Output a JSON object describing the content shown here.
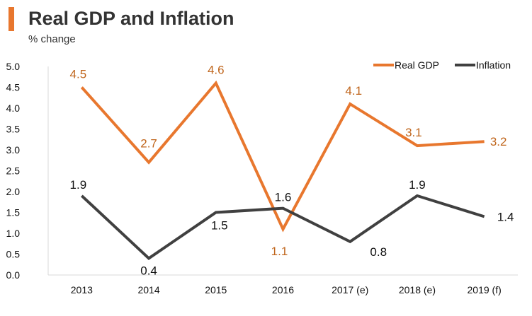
{
  "header": {
    "title": "Real GDP and Inflation",
    "subtitle": "% change"
  },
  "colors": {
    "accent": "#e8772e",
    "real_gdp": "#e8772e",
    "inflation": "#404040",
    "gdp_label": "#c0661d",
    "axis": "#d9d9d9"
  },
  "chart_data": {
    "type": "line",
    "title": "Real GDP and Inflation",
    "subtitle": "% change",
    "categories": [
      "2013",
      "2014",
      "2015",
      "2016",
      "2017 (e)",
      "2018 (e)",
      "2019 (f)"
    ],
    "yticks": [
      "5.0",
      "4.5",
      "4.0",
      "3.5",
      "3.0",
      "2.5",
      "2.0",
      "1.5",
      "1.0",
      "0.5",
      "0.0"
    ],
    "ylim": [
      0,
      5
    ],
    "grid": false,
    "legend_position": "top-right",
    "series": [
      {
        "name": "Real GDP",
        "values": [
          4.5,
          2.7,
          4.6,
          1.1,
          4.1,
          3.1,
          3.2
        ],
        "labels": [
          "4.5",
          "2.7",
          "4.6",
          "1.1",
          "4.1",
          "3.1",
          "3.2"
        ]
      },
      {
        "name": "Inflation",
        "values": [
          1.9,
          0.4,
          1.5,
          1.6,
          0.8,
          1.9,
          1.4
        ],
        "labels": [
          "1.9",
          "0.4",
          "1.5",
          "1.6",
          "0.8",
          "1.9",
          "1.4"
        ]
      }
    ]
  }
}
